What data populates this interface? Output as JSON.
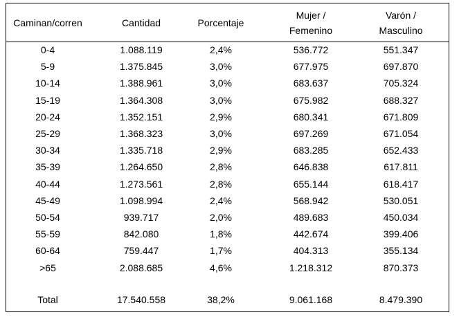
{
  "table": {
    "headers": [
      {
        "line1": "Caminan/corren",
        "line2": ""
      },
      {
        "line1": "Cantidad",
        "line2": ""
      },
      {
        "line1": "Porcentaje",
        "line2": ""
      },
      {
        "line1": "Mujer /",
        "line2": "Femenino"
      },
      {
        "line1": "Varón /",
        "line2": "Masculino"
      }
    ],
    "rows": [
      [
        "0-4",
        "1.088.119",
        "2,4%",
        "536.772",
        "551.347"
      ],
      [
        "5-9",
        "1.375.845",
        "3,0%",
        "677.975",
        "697.870"
      ],
      [
        "10-14",
        "1.388.961",
        "3,0%",
        "683.637",
        "705.324"
      ],
      [
        "15-19",
        "1.364.308",
        "3,0%",
        "675.982",
        "688.327"
      ],
      [
        "20-24",
        "1.352.151",
        "2,9%",
        "680.341",
        "671.809"
      ],
      [
        "25-29",
        "1.368.323",
        "3,0%",
        "697.269",
        "671.054"
      ],
      [
        "30-34",
        "1.335.718",
        "2,9%",
        "683.285",
        "652.433"
      ],
      [
        "35-39",
        "1.264.650",
        "2,8%",
        "646.838",
        "617.811"
      ],
      [
        "40-44",
        "1.273.561",
        "2,8%",
        "655.144",
        "618.417"
      ],
      [
        "45-49",
        "1.098.994",
        "2,4%",
        "568.942",
        "530.051"
      ],
      [
        "50-54",
        "939.717",
        "2,0%",
        "489.683",
        "450.034"
      ],
      [
        "55-59",
        "842.080",
        "1,8%",
        "442.674",
        "399.406"
      ],
      [
        "60-64",
        "759.447",
        "1,7%",
        "404.313",
        "355.134"
      ],
      [
        ">65",
        "2.088.685",
        "4,6%",
        "1.218.312",
        "870.373"
      ]
    ],
    "total": [
      "Total",
      "17.540.558",
      "38,2%",
      "9.061.168",
      "8.479.390"
    ]
  }
}
